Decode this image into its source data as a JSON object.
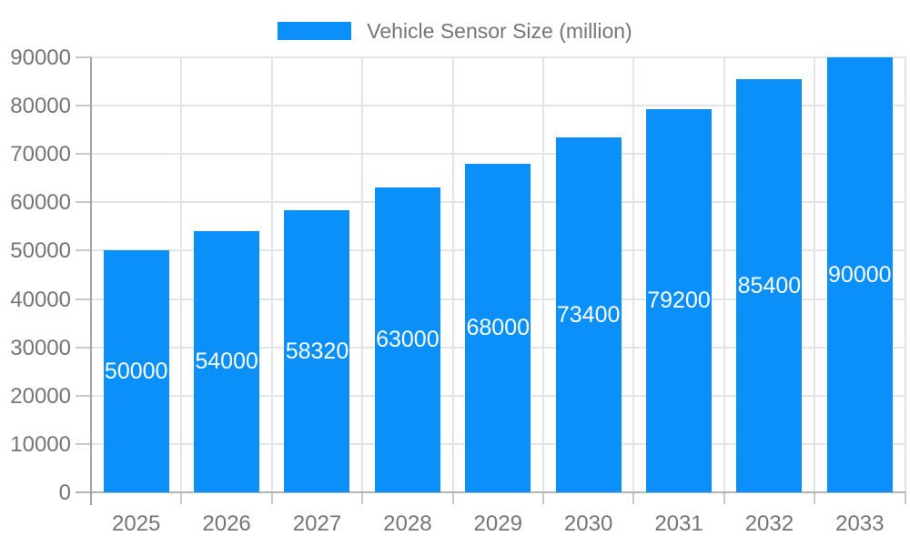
{
  "legend": {
    "label": "Vehicle Sensor Size (million)"
  },
  "colors": {
    "bar": "#0a90f8",
    "grid": "#e4e4e4",
    "axis_line": "#a3a3a3",
    "baseline": "#b4b4b4",
    "tick": "#c8c8c8",
    "label_text": "#757575",
    "value_label_text": "#ffffff",
    "background": "#ffffff"
  },
  "chart_data": {
    "type": "bar",
    "title": "",
    "series_name": "Vehicle Sensor Size (million)",
    "categories": [
      "2025",
      "2026",
      "2027",
      "2028",
      "2029",
      "2030",
      "2031",
      "2032",
      "2033"
    ],
    "values": [
      50000,
      54000,
      58320,
      63000,
      68000,
      73400,
      79200,
      85400,
      90000
    ],
    "value_labels": [
      "50000",
      "54000",
      "58320",
      "63000",
      "68000",
      "73400",
      "79200",
      "85400",
      "90000"
    ],
    "value_label_position": "inside-center",
    "xlabel": "",
    "ylabel": "",
    "ylim": [
      0,
      90000
    ],
    "yticks": [
      0,
      10000,
      20000,
      30000,
      40000,
      50000,
      60000,
      70000,
      80000,
      90000
    ],
    "ytick_labels": [
      "0",
      "10000",
      "20000",
      "30000",
      "40000",
      "50000",
      "60000",
      "70000",
      "80000",
      "90000"
    ],
    "grid": true,
    "grid_vertical": true,
    "legend_position": "top-center",
    "bar_color": "#0a90f8"
  }
}
